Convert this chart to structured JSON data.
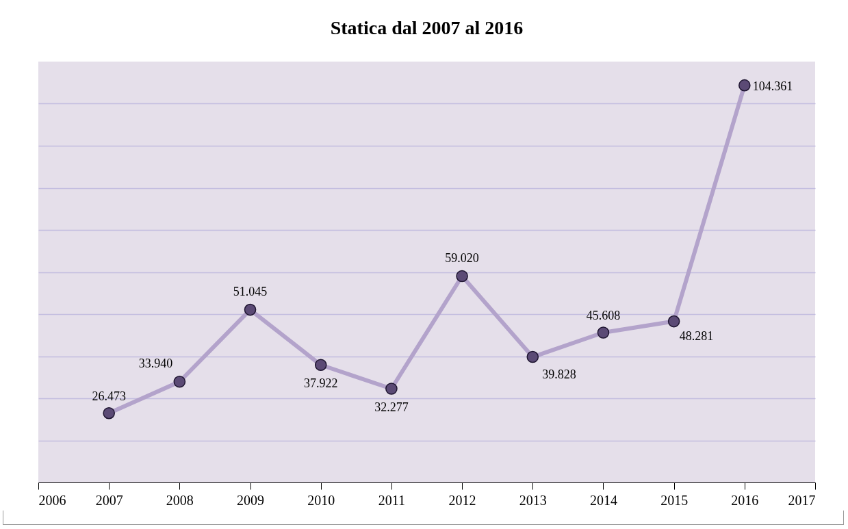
{
  "chart_data": {
    "type": "line",
    "title": "Statica dal 2007 al 2016",
    "x": [
      2007,
      2008,
      2009,
      2010,
      2011,
      2012,
      2013,
      2014,
      2015,
      2016
    ],
    "series": [
      {
        "color": "#b3a3cb",
        "values": [
          26473,
          33940,
          51045,
          37922,
          32277,
          59020,
          39828,
          45608,
          48281,
          104361
        ],
        "value_labels": [
          "26.473",
          "33.940",
          "51.045",
          "37.922",
          "32.277",
          "59.020",
          "39.828",
          "45.608",
          "48.281",
          "104.361"
        ]
      }
    ],
    "marker": "circle",
    "xlim": [
      2006,
      2017
    ],
    "xticks": [
      2006,
      2007,
      2008,
      2009,
      2010,
      2011,
      2012,
      2013,
      2014,
      2015,
      2016,
      2017
    ],
    "ylim": [
      10000,
      110000
    ],
    "yticks": [
      {
        "value": 20000,
        "label": null
      },
      {
        "value": 30000,
        "label": null
      },
      {
        "value": 40000,
        "label": null
      },
      {
        "value": 50000,
        "label": null
      },
      {
        "value": 60000,
        "label": null
      },
      {
        "value": 70000,
        "label": null
      },
      {
        "value": 80000,
        "label": null
      },
      {
        "value": 90000,
        "label": null
      },
      {
        "value": 100000,
        "label": null
      }
    ],
    "grid": "y",
    "tick_labels": "x"
  }
}
